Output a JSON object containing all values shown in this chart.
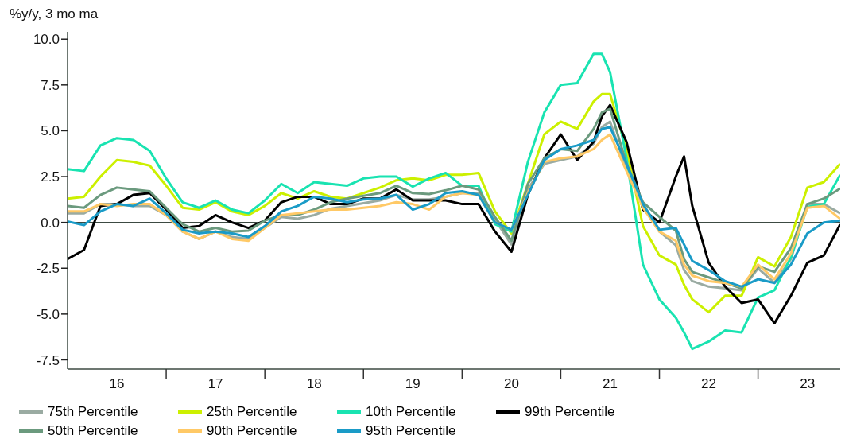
{
  "chart_data": {
    "type": "line",
    "ylabel": "%y/y, 3 mo ma",
    "x": [
      "2016-01",
      "2016-03",
      "2016-05",
      "2016-07",
      "2016-09",
      "2016-11",
      "2017-01",
      "2017-03",
      "2017-05",
      "2017-07",
      "2017-09",
      "2017-11",
      "2018-01",
      "2018-03",
      "2018-05",
      "2018-07",
      "2018-09",
      "2018-11",
      "2019-01",
      "2019-03",
      "2019-05",
      "2019-07",
      "2019-09",
      "2019-11",
      "2020-01",
      "2020-03",
      "2020-05",
      "2020-07",
      "2020-09",
      "2020-11",
      "2021-01",
      "2021-03",
      "2021-05",
      "2021-06",
      "2021-07",
      "2021-09",
      "2021-11",
      "2022-01",
      "2022-03",
      "2022-04",
      "2022-05",
      "2022-07",
      "2022-09",
      "2022-11",
      "2023-01",
      "2023-03",
      "2023-05",
      "2023-07",
      "2023-09",
      "2023-11"
    ],
    "series": [
      {
        "name": "75th Percentile",
        "color": "#9aaba2",
        "values": [
          0.5,
          0.5,
          1.0,
          1.0,
          0.9,
          0.9,
          0.4,
          -0.5,
          -0.9,
          -0.5,
          -0.8,
          -0.9,
          -0.3,
          0.3,
          0.2,
          0.4,
          0.75,
          0.9,
          1.05,
          1.2,
          1.5,
          1.25,
          1.25,
          1.4,
          1.6,
          1.6,
          0.15,
          -1.2,
          1.8,
          3.2,
          3.4,
          3.6,
          4.3,
          5.2,
          5.5,
          2.9,
          0.9,
          -0.5,
          -1.25,
          -2.6,
          -3.2,
          -3.5,
          -3.6,
          -3.7,
          -2.5,
          -3.3,
          -2.0,
          1.0,
          1.0,
          0.5
        ]
      },
      {
        "name": "25th Percentile",
        "color": "#ccf000",
        "values": [
          1.3,
          1.4,
          2.5,
          3.4,
          3.3,
          3.1,
          2.0,
          0.8,
          0.7,
          1.1,
          0.6,
          0.4,
          0.9,
          1.6,
          1.3,
          1.7,
          1.4,
          1.3,
          1.6,
          1.9,
          2.3,
          2.4,
          2.3,
          2.6,
          2.6,
          2.7,
          0.6,
          -0.6,
          2.1,
          4.8,
          5.5,
          5.1,
          6.6,
          7.0,
          7.0,
          4.0,
          -0.2,
          -1.8,
          -2.3,
          -3.4,
          -4.2,
          -4.9,
          -4.0,
          -4.0,
          -1.9,
          -2.4,
          -0.8,
          1.9,
          2.2,
          3.2
        ]
      },
      {
        "name": "10th Percentile",
        "color": "#19e3b1",
        "values": [
          2.9,
          2.8,
          4.2,
          4.6,
          4.5,
          3.9,
          2.4,
          1.1,
          0.8,
          1.2,
          0.7,
          0.5,
          1.2,
          2.1,
          1.6,
          2.2,
          2.1,
          2.0,
          2.4,
          2.5,
          2.5,
          1.95,
          2.4,
          2.7,
          2.0,
          2.0,
          -0.1,
          -0.5,
          3.3,
          6.0,
          7.5,
          7.6,
          9.2,
          9.2,
          8.2,
          3.5,
          -2.3,
          -4.2,
          -5.2,
          -6.0,
          -6.9,
          -6.5,
          -5.9,
          -6.0,
          -4.1,
          -3.7,
          -1.9,
          0.85,
          1.0,
          2.6
        ]
      },
      {
        "name": "99th Percentile",
        "color": "#000000",
        "values": [
          -2.0,
          -1.5,
          0.9,
          1.0,
          1.5,
          1.6,
          0.7,
          -0.3,
          -0.2,
          0.4,
          0.0,
          -0.3,
          0.1,
          1.1,
          1.4,
          1.4,
          1.0,
          1.0,
          1.3,
          1.3,
          1.8,
          1.2,
          1.2,
          1.2,
          1.0,
          1.0,
          -0.5,
          -1.6,
          1.5,
          3.5,
          4.8,
          3.4,
          4.4,
          5.8,
          6.4,
          4.4,
          0.7,
          0.0,
          2.5,
          3.6,
          0.9,
          -2.2,
          -3.5,
          -4.4,
          -4.2,
          -5.5,
          -4.0,
          -2.2,
          -1.8,
          -0.1
        ]
      },
      {
        "name": "50th Percentile",
        "color": "#6b9a7e",
        "values": [
          0.9,
          0.8,
          1.5,
          1.9,
          1.8,
          1.7,
          0.8,
          -0.1,
          -0.5,
          -0.3,
          -0.5,
          -0.45,
          0.1,
          0.4,
          0.4,
          0.7,
          1.1,
          1.3,
          1.45,
          1.6,
          2.0,
          1.6,
          1.55,
          1.75,
          2.0,
          1.8,
          0.3,
          -1.0,
          2.1,
          3.5,
          4.0,
          3.9,
          5.1,
          6.0,
          6.2,
          3.2,
          1.1,
          0.3,
          -0.45,
          -2.0,
          -2.7,
          -3.0,
          -3.3,
          -3.6,
          -2.4,
          -2.7,
          -1.4,
          1.0,
          1.3,
          1.85
        ]
      },
      {
        "name": "90th Percentile",
        "color": "#ffc966",
        "values": [
          0.6,
          0.6,
          1.0,
          0.9,
          1.0,
          1.0,
          0.4,
          -0.5,
          -0.9,
          -0.5,
          -0.9,
          -1.0,
          -0.3,
          0.4,
          0.5,
          0.6,
          0.7,
          0.7,
          0.8,
          0.9,
          1.1,
          1.0,
          0.7,
          1.4,
          1.6,
          1.5,
          0.0,
          -0.4,
          1.6,
          3.3,
          3.5,
          3.6,
          4.0,
          4.5,
          4.8,
          2.8,
          0.8,
          -0.5,
          -1.0,
          -2.3,
          -2.9,
          -3.2,
          -3.3,
          -3.5,
          -2.3,
          -3.1,
          -1.7,
          0.8,
          0.9,
          0.2
        ]
      },
      {
        "name": "95th Percentile",
        "color": "#1a9bc7",
        "values": [
          0.05,
          -0.15,
          0.6,
          1.0,
          0.9,
          1.3,
          0.5,
          -0.4,
          -0.6,
          -0.5,
          -0.6,
          -0.8,
          -0.2,
          0.6,
          0.9,
          1.4,
          1.3,
          1.1,
          1.25,
          1.3,
          1.5,
          0.7,
          1.0,
          1.6,
          1.7,
          1.5,
          0.0,
          -0.4,
          1.5,
          3.4,
          4.0,
          4.2,
          4.5,
          5.1,
          5.2,
          3.2,
          1.0,
          -0.4,
          -0.3,
          -1.2,
          -2.1,
          -2.6,
          -3.2,
          -3.5,
          -3.1,
          -3.3,
          -2.3,
          -0.6,
          0.0,
          0.1
        ]
      }
    ],
    "xlim": [
      "2016-01",
      "2023-11"
    ],
    "xticks": [
      {
        "value": "2016-07",
        "label": "16"
      },
      {
        "value": "2017-01",
        "label": null
      },
      {
        "value": "2017-07",
        "label": "17"
      },
      {
        "value": "2018-01",
        "label": null
      },
      {
        "value": "2018-07",
        "label": "18"
      },
      {
        "value": "2019-01",
        "label": null
      },
      {
        "value": "2019-07",
        "label": "19"
      },
      {
        "value": "2020-01",
        "label": null
      },
      {
        "value": "2020-07",
        "label": "20"
      },
      {
        "value": "2021-01",
        "label": null
      },
      {
        "value": "2021-07",
        "label": "21"
      },
      {
        "value": "2022-01",
        "label": null
      },
      {
        "value": "2022-07",
        "label": "22"
      },
      {
        "value": "2023-01",
        "label": null
      },
      {
        "value": "2023-07",
        "label": "23"
      }
    ],
    "ylim": [
      -8,
      10.4
    ],
    "yticks": [
      {
        "value": -7.5,
        "label": "-7.5"
      },
      {
        "value": -5,
        "label": "-5.0"
      },
      {
        "value": -2.5,
        "label": "-2.5"
      },
      {
        "value": 0,
        "label": "0.0"
      },
      {
        "value": 2.5,
        "label": "2.5"
      },
      {
        "value": 5,
        "label": "5.0"
      },
      {
        "value": 7.5,
        "label": "7.5"
      },
      {
        "value": 10,
        "label": "10.0"
      }
    ],
    "ref_lines": [
      {
        "axis": "y",
        "value": 0,
        "color": "#3c4a42"
      }
    ],
    "grid": false,
    "legend": "bottom",
    "line_style": "solid"
  }
}
